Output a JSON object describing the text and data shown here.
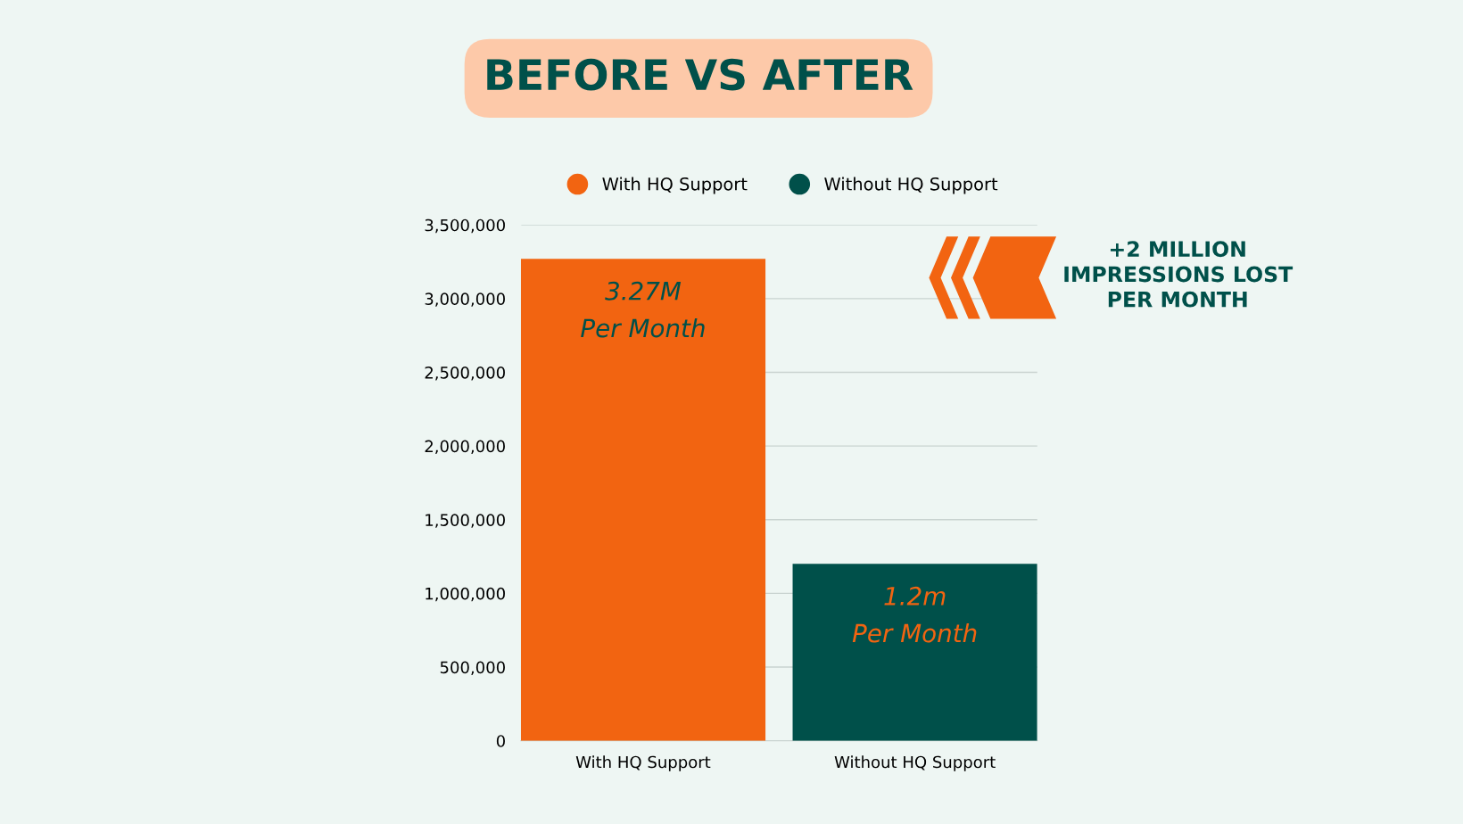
{
  "chart_data": {
    "type": "bar",
    "title": "BEFORE VS AFTER",
    "categories": [
      "With HQ Support",
      "Without HQ Support"
    ],
    "series": [
      {
        "name": "With HQ Support",
        "color": "#f26411",
        "values": [
          3270000,
          null
        ],
        "value_labels": [
          "3.27M\nPer Month",
          null
        ]
      },
      {
        "name": "Without HQ Support",
        "color": "#00504a",
        "values": [
          null,
          1200000
        ],
        "value_labels": [
          null,
          "1.2m\nPer Month"
        ]
      }
    ],
    "ylim": [
      0,
      3500000
    ],
    "yticks": [
      {
        "value": 0,
        "label": "0"
      },
      {
        "value": 500000,
        "label": "500,000"
      },
      {
        "value": 1000000,
        "label": "1,000,000"
      },
      {
        "value": 1500000,
        "label": "1,500,000"
      },
      {
        "value": 2000000,
        "label": "2,000,000"
      },
      {
        "value": 2500000,
        "label": "2,500,000"
      },
      {
        "value": 3000000,
        "label": "3,000,000"
      },
      {
        "value": 3500000,
        "label": "3,500,000"
      }
    ],
    "grid": "y",
    "legend": "top",
    "annotations": [
      "+2 MILLION\nIMPRESSIONS LOST\nPER MONTH"
    ]
  }
}
